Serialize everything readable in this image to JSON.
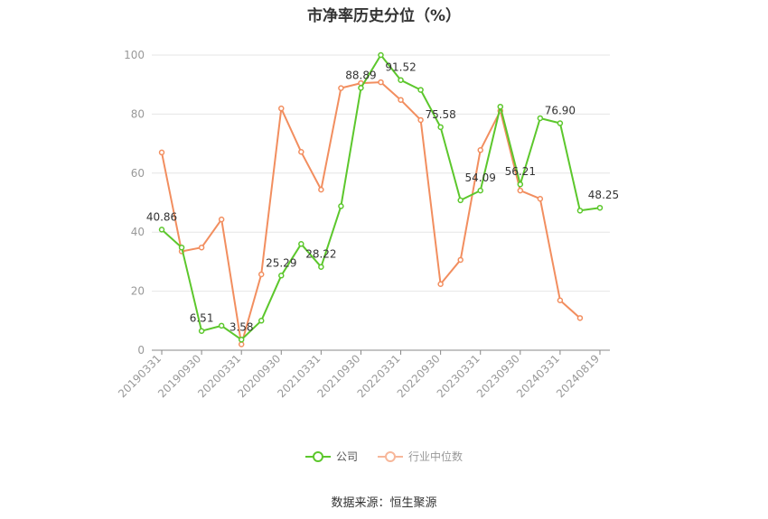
{
  "chart_data": {
    "type": "line",
    "title": "市净率历史分位（%）",
    "xlabel": "",
    "ylabel": "",
    "ylim": [
      0,
      100
    ],
    "yticks": [
      0,
      20,
      40,
      60,
      80,
      100
    ],
    "grid": true,
    "legend_position": "bottom",
    "x": [
      "20190331",
      "20190630",
      "20190930",
      "20191231",
      "20200331",
      "20200630",
      "20200930",
      "20201231",
      "20210331",
      "20210630",
      "20210930",
      "20211231",
      "20220331",
      "20220630",
      "20220930",
      "20221231",
      "20230331",
      "20230630",
      "20230930",
      "20231231",
      "20240331",
      "20240630",
      "20240819"
    ],
    "x_tick_labels": [
      "20190331",
      "20190930",
      "20200331",
      "20200930",
      "20210331",
      "20210930",
      "20220331",
      "20220930",
      "20230331",
      "20230930",
      "20240331",
      "20240819"
    ],
    "series": [
      {
        "name": "公司",
        "color": "#5cc72c",
        "values": [
          40.86,
          34.8,
          6.51,
          8.3,
          3.58,
          10.0,
          25.29,
          36.0,
          28.22,
          48.8,
          88.89,
          100.0,
          91.52,
          88.2,
          75.58,
          50.8,
          54.09,
          82.5,
          56.21,
          78.6,
          76.9,
          47.3,
          48.25
        ],
        "labels": [
          "40.86",
          "",
          "6.51",
          "",
          "3.58",
          "",
          "25.29",
          "",
          "28.22",
          "",
          "88.89",
          "",
          "91.52",
          "",
          "75.58",
          "",
          "54.09",
          "",
          "56.21",
          "",
          "76.90",
          "",
          "48.25"
        ]
      },
      {
        "name": "行业中位数",
        "color": "#f28e5f",
        "values": [
          67.0,
          33.5,
          34.8,
          44.3,
          2.0,
          25.7,
          81.9,
          67.2,
          54.4,
          88.8,
          90.5,
          90.8,
          84.8,
          78.0,
          22.4,
          30.6,
          67.8,
          81.1,
          54.1,
          51.3,
          16.9,
          10.9,
          null
        ],
        "labels": []
      }
    ]
  },
  "source": "数据来源：恒生聚源"
}
